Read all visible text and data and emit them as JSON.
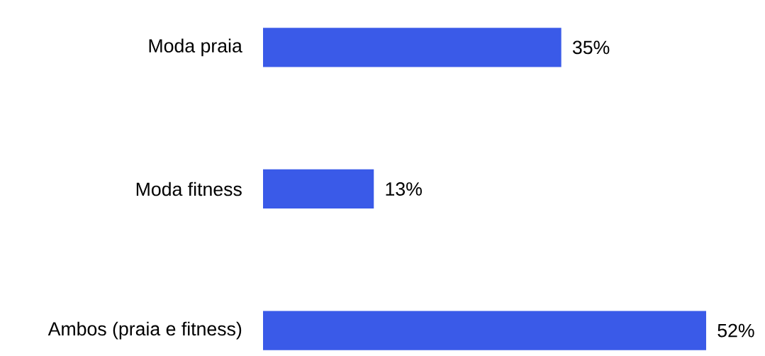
{
  "chart_data": {
    "type": "bar",
    "orientation": "horizontal",
    "categories": [
      "Moda praia",
      "Moda fitness",
      "Ambos (praia e fitness)"
    ],
    "values": [
      35,
      13,
      52
    ],
    "value_labels": [
      "35%",
      "13%",
      "52%"
    ],
    "color": "#3a5ae8"
  }
}
